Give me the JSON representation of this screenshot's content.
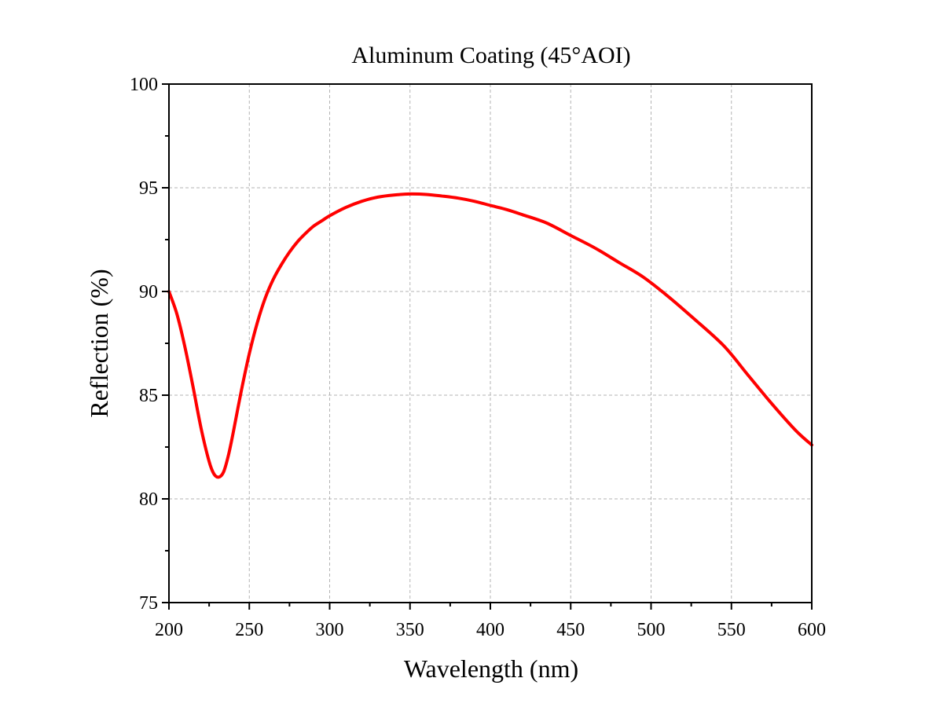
{
  "chart_data": {
    "type": "line",
    "title": "Aluminum Coating (45°AOI)",
    "xlabel": "Wavelength (nm)",
    "ylabel": "Reflection (%)",
    "xlim": [
      200,
      600
    ],
    "ylim": [
      75,
      100
    ],
    "x_ticks": [
      200,
      250,
      300,
      350,
      400,
      450,
      500,
      550,
      600
    ],
    "y_ticks": [
      75,
      80,
      85,
      90,
      95,
      100
    ],
    "x_tick_labels": [
      "200",
      "250",
      "300",
      "350",
      "400",
      "450",
      "500",
      "550",
      "600"
    ],
    "y_tick_labels": [
      "75",
      "80",
      "85",
      "90",
      "95",
      "100"
    ],
    "grid": true,
    "legend": "none",
    "series": [
      {
        "color": "#ff0000",
        "x": [
          200,
          205,
          210,
          215,
          220,
          225,
          228,
          231,
          234,
          237,
          240,
          245,
          250,
          255,
          260,
          265,
          270,
          275,
          280,
          285,
          290,
          295,
          300,
          310,
          320,
          330,
          340,
          350,
          360,
          370,
          380,
          390,
          400,
          410,
          420,
          435,
          450,
          465,
          480,
          495,
          510,
          525,
          545,
          560,
          575,
          590,
          600
        ],
        "y": [
          90.0,
          88.9,
          87.3,
          85.4,
          83.4,
          81.8,
          81.2,
          81.05,
          81.3,
          82.1,
          83.2,
          85.2,
          87.0,
          88.5,
          89.7,
          90.6,
          91.3,
          91.9,
          92.4,
          92.8,
          93.15,
          93.4,
          93.65,
          94.05,
          94.35,
          94.55,
          94.65,
          94.7,
          94.68,
          94.6,
          94.5,
          94.35,
          94.15,
          93.95,
          93.7,
          93.3,
          92.7,
          92.1,
          91.4,
          90.7,
          89.8,
          88.8,
          87.4,
          86.0,
          84.6,
          83.3,
          82.6
        ]
      }
    ]
  }
}
